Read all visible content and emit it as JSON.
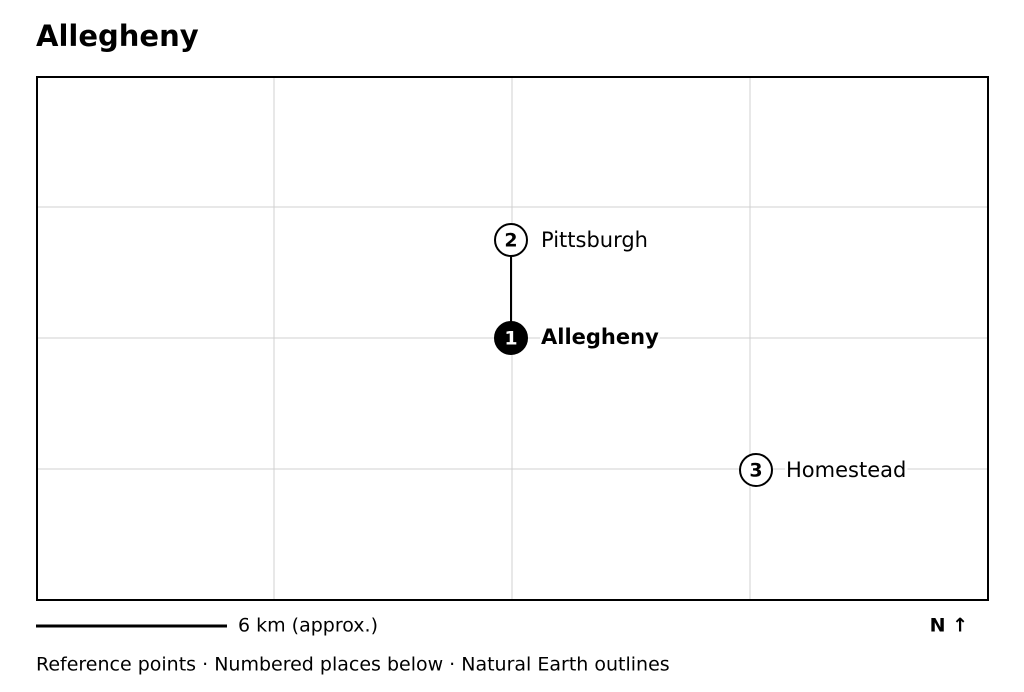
{
  "header": {
    "title": "Allegheny"
  },
  "places": [
    {
      "number": "1",
      "label": "Allegheny"
    },
    {
      "number": "2",
      "label": "Pittsburgh"
    },
    {
      "number": "3",
      "label": "Homestead"
    }
  ],
  "scale_bar": {
    "label": "6 km (approx.)"
  },
  "north_arrow": {
    "label": "N ↑"
  },
  "footer": {
    "text": "Reference points · Numbered places below · Natural Earth outlines"
  }
}
